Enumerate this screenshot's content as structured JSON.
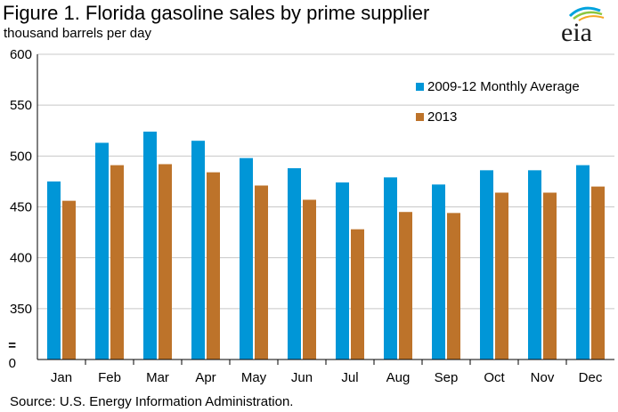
{
  "header": {
    "title": "Figure 1. Florida gasoline sales by prime supplier",
    "subtitle": "thousand barrels per day",
    "logo_text": "eia"
  },
  "footer": {
    "source": "Source: U.S. Energy Information Administration."
  },
  "chart_data": {
    "type": "bar",
    "categories": [
      "Jan",
      "Feb",
      "Mar",
      "Apr",
      "May",
      "Jun",
      "Jul",
      "Aug",
      "Sep",
      "Oct",
      "Nov",
      "Dec"
    ],
    "series": [
      {
        "name": "2009-12 Monthly Average",
        "color": "#0096d7",
        "values": [
          475,
          513,
          524,
          515,
          498,
          488,
          474,
          479,
          472,
          486,
          486,
          491
        ]
      },
      {
        "name": "2013",
        "color": "#bd732a",
        "values": [
          456,
          491,
          492,
          484,
          471,
          457,
          428,
          445,
          444,
          464,
          464,
          470
        ]
      }
    ],
    "yticks": [
      "0",
      "350",
      "400",
      "450",
      "500",
      "550",
      "600"
    ],
    "ylim": [
      0,
      600
    ],
    "axis_break": true,
    "axis_break_symbol": "=",
    "grid": true,
    "legend_position": "top-right"
  }
}
